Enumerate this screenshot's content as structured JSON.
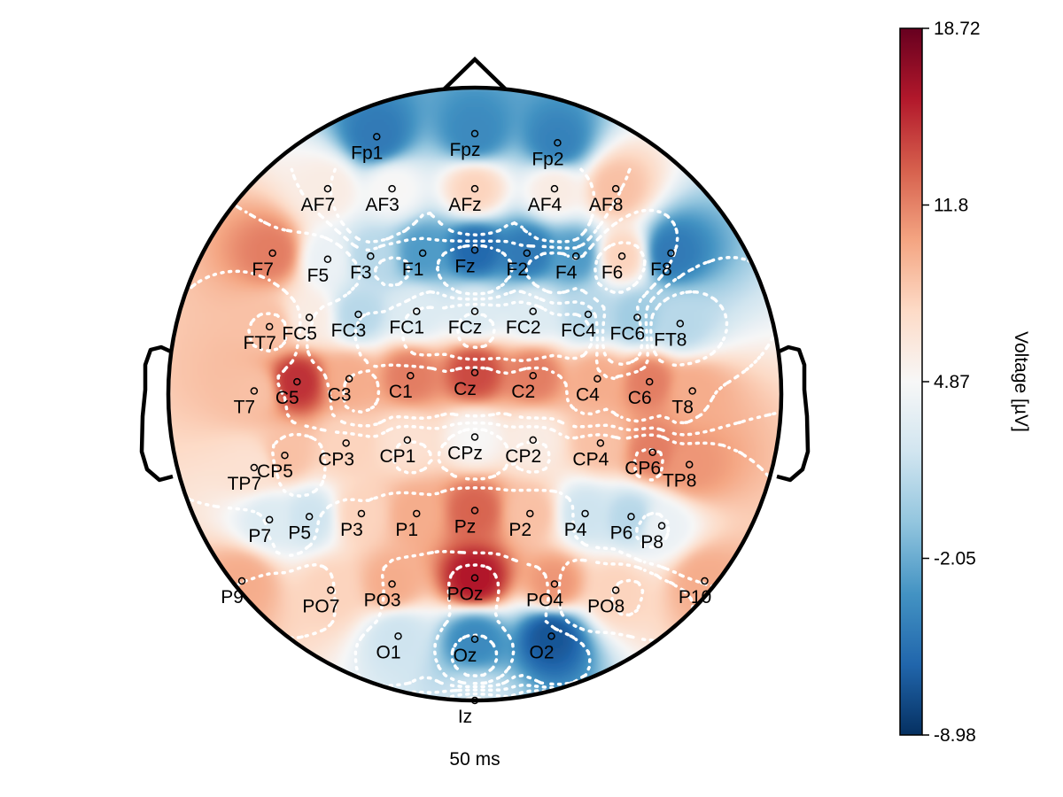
{
  "chart_data": {
    "type": "heatmap",
    "subtype": "eeg-topomap",
    "time_label": "50 ms",
    "colorbar": {
      "label": "Voltage [µV]",
      "ticks": [
        "18.72",
        "11.8",
        "4.87",
        "-2.05",
        "-8.98"
      ],
      "min": -8.98,
      "max": 18.72,
      "colormap": "RdBu_r",
      "colors": [
        "#053061",
        "#2166ac",
        "#4393c3",
        "#92c5de",
        "#d1e5f0",
        "#f7f7f7",
        "#fddbc7",
        "#f4a582",
        "#d6604d",
        "#b2182b",
        "#67001f"
      ]
    },
    "contours": "white dotted",
    "electrodes": [
      {
        "name": "Fp1",
        "v": -5.0
      },
      {
        "name": "Fpz",
        "v": -4.0
      },
      {
        "name": "Fp2",
        "v": -4.5
      },
      {
        "name": "AF7",
        "v": 6.0
      },
      {
        "name": "AF3",
        "v": 5.0
      },
      {
        "name": "AFz",
        "v": 8.0
      },
      {
        "name": "AF4",
        "v": 6.0
      },
      {
        "name": "AF8",
        "v": 9.0
      },
      {
        "name": "F7",
        "v": 12.0
      },
      {
        "name": "F5",
        "v": 4.0
      },
      {
        "name": "F3",
        "v": 1.0
      },
      {
        "name": "F1",
        "v": -3.0
      },
      {
        "name": "Fz",
        "v": -6.0
      },
      {
        "name": "F2",
        "v": -5.0
      },
      {
        "name": "F4",
        "v": -3.0
      },
      {
        "name": "F6",
        "v": 8.0
      },
      {
        "name": "F8",
        "v": -5.0
      },
      {
        "name": "FT7",
        "v": 9.0
      },
      {
        "name": "FC5",
        "v": 6.0
      },
      {
        "name": "FC3",
        "v": 1.0
      },
      {
        "name": "FC1",
        "v": 3.0
      },
      {
        "name": "FCz",
        "v": 3.0
      },
      {
        "name": "FC2",
        "v": 3.0
      },
      {
        "name": "FC4",
        "v": 1.0
      },
      {
        "name": "FC6",
        "v": 0.0
      },
      {
        "name": "FT8",
        "v": 1.0
      },
      {
        "name": "T7",
        "v": 9.0
      },
      {
        "name": "C5",
        "v": 15.0
      },
      {
        "name": "C3",
        "v": 10.0
      },
      {
        "name": "C1",
        "v": 12.0
      },
      {
        "name": "Cz",
        "v": 14.0
      },
      {
        "name": "C2",
        "v": 12.0
      },
      {
        "name": "C4",
        "v": 10.0
      },
      {
        "name": "C6",
        "v": 12.0
      },
      {
        "name": "T8",
        "v": 10.0
      },
      {
        "name": "TP7",
        "v": 7.0
      },
      {
        "name": "CP5",
        "v": 9.0
      },
      {
        "name": "CP3",
        "v": 8.0
      },
      {
        "name": "CP1",
        "v": 7.0
      },
      {
        "name": "CPz",
        "v": 5.0
      },
      {
        "name": "CP2",
        "v": 6.0
      },
      {
        "name": "CP4",
        "v": 9.0
      },
      {
        "name": "CP6",
        "v": 12.0
      },
      {
        "name": "TP8",
        "v": 11.0
      },
      {
        "name": "P7",
        "v": 3.0
      },
      {
        "name": "P5",
        "v": 2.0
      },
      {
        "name": "P3",
        "v": 8.0
      },
      {
        "name": "P1",
        "v": 10.0
      },
      {
        "name": "Pz",
        "v": 13.0
      },
      {
        "name": "P2",
        "v": 9.0
      },
      {
        "name": "P4",
        "v": 2.0
      },
      {
        "name": "P6",
        "v": 1.0
      },
      {
        "name": "P8",
        "v": 4.0
      },
      {
        "name": "P9",
        "v": 10.0
      },
      {
        "name": "PO7",
        "v": 8.0
      },
      {
        "name": "PO3",
        "v": 10.0
      },
      {
        "name": "POz",
        "v": 16.0
      },
      {
        "name": "PO4",
        "v": 11.0
      },
      {
        "name": "PO8",
        "v": 8.0
      },
      {
        "name": "P10",
        "v": 10.0
      },
      {
        "name": "O1",
        "v": 2.0
      },
      {
        "name": "Oz",
        "v": -4.0
      },
      {
        "name": "O2",
        "v": -7.0
      },
      {
        "name": "Iz",
        "v": 2.0
      }
    ]
  }
}
